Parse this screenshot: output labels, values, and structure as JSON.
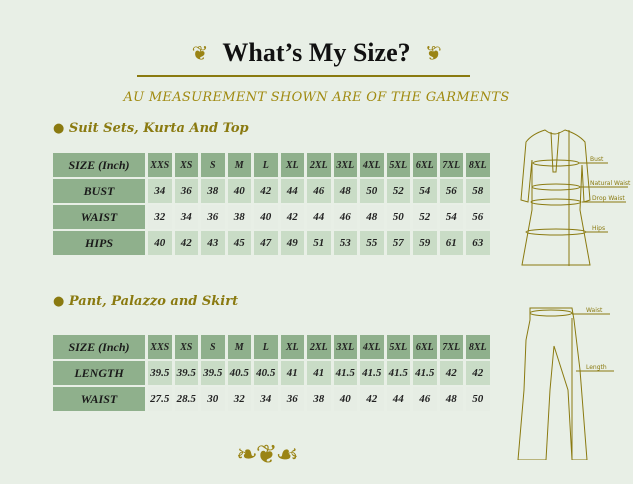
{
  "title": "What’s My Size?",
  "subtitle": "AU MEASUREMENT SHOWN ARE OF THE GARMENTS",
  "sizes": [
    "XXS",
    "XS",
    "S",
    "M",
    "L",
    "XL",
    "2XL",
    "3XL",
    "4XL",
    "5XL",
    "6XL",
    "7XL",
    "8XL"
  ],
  "section1": {
    "heading": "● Suit Sets, Kurta And Top",
    "header_label": "SIZE (Inch)",
    "rows": [
      {
        "label": "BUST",
        "values": [
          "34",
          "36",
          "38",
          "40",
          "42",
          "44",
          "46",
          "48",
          "50",
          "52",
          "54",
          "56",
          "58"
        ]
      },
      {
        "label": "WAIST",
        "values": [
          "32",
          "34",
          "36",
          "38",
          "40",
          "42",
          "44",
          "46",
          "48",
          "50",
          "52",
          "54",
          "56"
        ]
      },
      {
        "label": "HIPS",
        "values": [
          "40",
          "42",
          "43",
          "45",
          "47",
          "49",
          "51",
          "53",
          "55",
          "57",
          "59",
          "61",
          "63"
        ]
      }
    ]
  },
  "section2": {
    "heading": "● Pant, Palazzo and Skirt",
    "header_label": "SIZE (Inch)",
    "rows": [
      {
        "label": "LENGTH",
        "values": [
          "39.5",
          "39.5",
          "39.5",
          "40.5",
          "40.5",
          "41",
          "41",
          "41.5",
          "41.5",
          "41.5",
          "41.5",
          "42",
          "42"
        ]
      },
      {
        "label": "WAIST",
        "values": [
          "27.5",
          "28.5",
          "30",
          "32",
          "34",
          "36",
          "38",
          "40",
          "42",
          "44",
          "46",
          "48",
          "50"
        ]
      }
    ]
  },
  "kurta_labels": [
    "Bust",
    "Natural Waist",
    "Drop Waist",
    "Hips"
  ],
  "pant_labels": [
    "Waist",
    "Length"
  ],
  "colors": {
    "accent": "#8a7a10",
    "table_header": "#8fb08c",
    "row_dark": "#c9dcc6",
    "row_light": "#e6ede4",
    "background": "#e8efe6"
  }
}
